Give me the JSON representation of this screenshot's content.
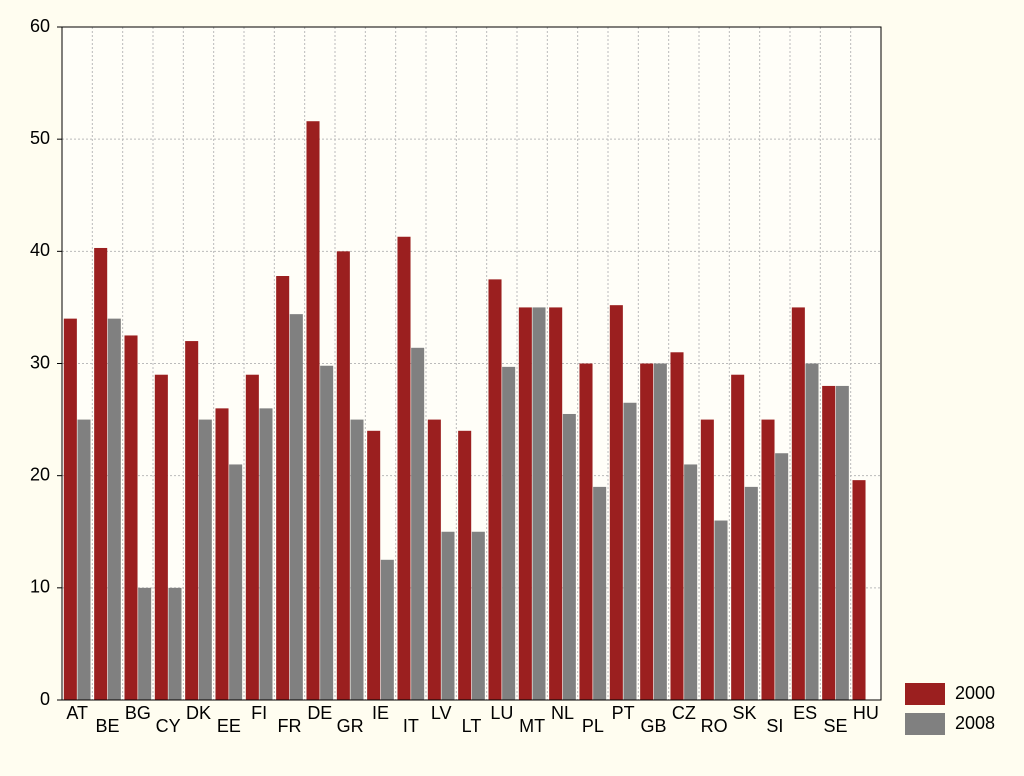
{
  "chart_data": {
    "type": "bar",
    "categories": [
      "AT",
      "BE",
      "BG",
      "CY",
      "DK",
      "EE",
      "FI",
      "FR",
      "DE",
      "GR",
      "IE",
      "IT",
      "LV",
      "LT",
      "LU",
      "MT",
      "NL",
      "PL",
      "PT",
      "GB",
      "CZ",
      "RO",
      "SK",
      "SI",
      "ES",
      "SE",
      "HU"
    ],
    "series": [
      {
        "name": "2000",
        "color": "#9b1f1f",
        "values": [
          34,
          40.3,
          32.5,
          29,
          32,
          26,
          29,
          37.8,
          51.6,
          40,
          24,
          41.3,
          25,
          24,
          37.5,
          35,
          35,
          30,
          35.2,
          30,
          31,
          25,
          29,
          25,
          35,
          28,
          19.6
        ]
      },
      {
        "name": "2008",
        "color": "#808080",
        "values": [
          25,
          34,
          10,
          10,
          25,
          21,
          26,
          34.4,
          29.8,
          25,
          12.5,
          31.4,
          15,
          15,
          29.7,
          35,
          25.5,
          19,
          26.5,
          30,
          21,
          16,
          19,
          22,
          30,
          28,
          null
        ]
      }
    ],
    "ylim": [
      0,
      60
    ],
    "yticks": [
      0,
      10,
      20,
      30,
      40,
      50,
      60
    ],
    "grid": true,
    "legend": "bottom-right"
  }
}
